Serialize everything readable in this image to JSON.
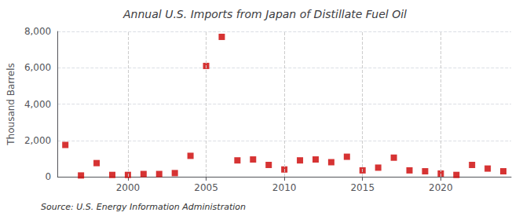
{
  "chart_data": {
    "type": "scatter",
    "title": "Annual U.S. Imports from Japan of Distillate Fuel Oil",
    "ylabel": "Thousand Barrels",
    "annotations": [
      "Source: U.S. Energy Information Administration"
    ],
    "x": [
      1996,
      1997,
      1998,
      1999,
      2000,
      2001,
      2002,
      2003,
      2004,
      2005,
      2006,
      2007,
      2008,
      2009,
      2010,
      2011,
      2012,
      2013,
      2014,
      2015,
      2016,
      2017,
      2018,
      2019,
      2020,
      2021,
      2022,
      2023,
      2024
    ],
    "values": [
      1750,
      70,
      750,
      100,
      100,
      150,
      150,
      200,
      1150,
      6100,
      7700,
      900,
      950,
      650,
      400,
      900,
      950,
      800,
      1100,
      350,
      500,
      1050,
      350,
      300,
      175,
      100,
      650,
      450,
      300
    ],
    "color": "#cc0000",
    "marker": "square",
    "xlim": [
      1995.5,
      2024.5
    ],
    "xticks": [
      2000,
      2005,
      2010,
      2015,
      2020
    ],
    "ylim": [
      0,
      8000
    ],
    "yticks": [
      0,
      {
        "value": 2000,
        "label": "2,000"
      },
      {
        "value": 4000,
        "label": "4,000"
      },
      {
        "value": 6000,
        "label": "6,000"
      },
      {
        "value": 8000,
        "label": "8,000"
      }
    ],
    "grid": true
  }
}
